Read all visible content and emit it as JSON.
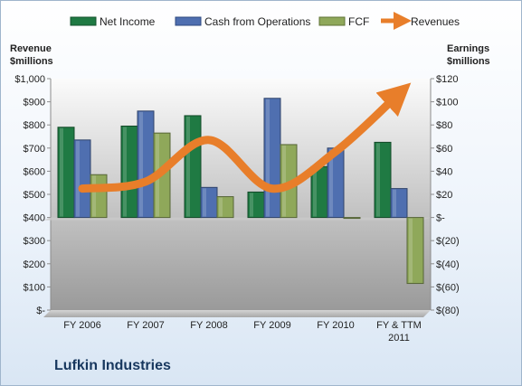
{
  "company_label": "Lufkin Industries",
  "chart_data": {
    "type": "bar",
    "categories": [
      "FY 2006",
      "FY 2007",
      "FY 2008",
      "FY 2009",
      "FY 2010",
      "FY & TTM 2011"
    ],
    "left_axis": {
      "title_line1": "Revenue",
      "title_line2": "$millions",
      "min": 0,
      "max": 1000,
      "step": 100,
      "tick_labels": [
        "$-",
        "$100",
        "$200",
        "$300",
        "$400",
        "$500",
        "$600",
        "$700",
        "$800",
        "$900",
        "$1,000"
      ]
    },
    "right_axis": {
      "title_line1": "Earnings",
      "title_line2": "$millions",
      "min": -80,
      "max": 120,
      "step": 20,
      "tick_labels": [
        "$(80)",
        "$(60)",
        "$(40)",
        "$(20)",
        "$-",
        "$20",
        "$40",
        "$60",
        "$80",
        "$100",
        "$120"
      ]
    },
    "series": [
      {
        "name": "Net Income",
        "type": "bar",
        "axis": "right",
        "color": "#1f7a43",
        "values": [
          78,
          79,
          88,
          22,
          44,
          65
        ]
      },
      {
        "name": "Cash from Operations",
        "type": "bar",
        "axis": "right",
        "color": "#4f6fb0",
        "values": [
          67,
          92,
          26,
          103,
          60,
          25
        ]
      },
      {
        "name": "FCF",
        "type": "bar",
        "axis": "right",
        "color": "#8fa85a",
        "values": [
          37,
          73,
          18,
          63,
          0,
          -57
        ]
      },
      {
        "name": "Revenues",
        "type": "line",
        "axis": "left",
        "color": "#e87e2a",
        "values": [
          525,
          555,
          735,
          525,
          685,
          935
        ]
      }
    ],
    "legend_position": "top",
    "grid": false
  }
}
